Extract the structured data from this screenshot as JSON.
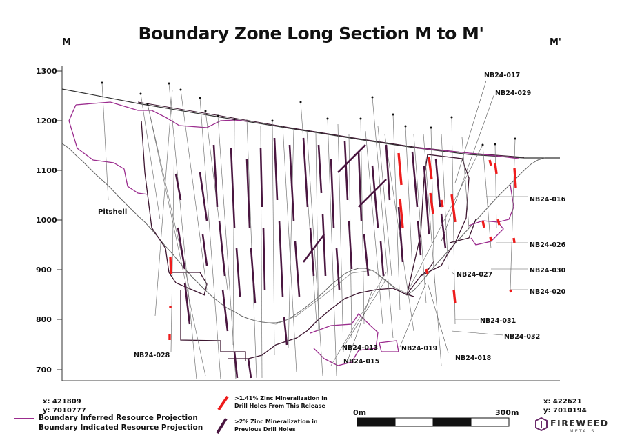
{
  "title": "Boundary Zone Long Section M to M'",
  "corner_left": "M",
  "corner_right": "M'",
  "y_axis": {
    "ticks": [
      "1300",
      "1200",
      "1100",
      "1000",
      "900",
      "800",
      "700"
    ],
    "range": [
      680,
      1310
    ]
  },
  "labels": {
    "pitshell": "Pitshell",
    "holes": [
      "NB24-017",
      "NB24-029",
      "NB24-016",
      "NB24-026",
      "NB24-030",
      "NB24-020",
      "NB24-027",
      "NB24-031",
      "NB24-032",
      "NB24-019",
      "NB24-018",
      "NB24-013",
      "NB24-015",
      "NB24-028"
    ]
  },
  "coords_left": {
    "x": "x: 421809",
    "y": "y: 7010777"
  },
  "coords_right": {
    "x": "x: 422621",
    "y": "y: 7010194"
  },
  "legend": {
    "inferred": "Boundary Inferred Resource Projection",
    "indicated": "Boundary Indicated Resource Projection",
    "mineral_new_1": ">1.41% Zinc Mineralization in",
    "mineral_new_2": "Drill Holes From This Release",
    "mineral_prev_1": ">2% Zinc Mineralization in",
    "mineral_prev_2": "Previous Drill Holes",
    "colors": {
      "inferred": "#9b2c8e",
      "indicated": "#3d1630",
      "new": "#ee1c1c",
      "previous": "#4a1640"
    }
  },
  "scale": {
    "start": "0m",
    "end": "300m"
  },
  "logo": {
    "name": "FIREWEED",
    "sub": "METALS"
  }
}
